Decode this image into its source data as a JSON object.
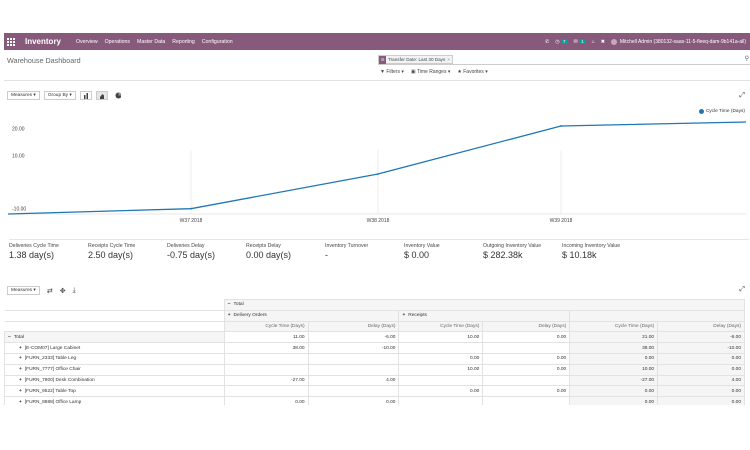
{
  "navbar": {
    "brand": "Inventory",
    "menu": [
      "Overview",
      "Operations",
      "Master Data",
      "Reporting",
      "Configuration"
    ],
    "activity_count": "7",
    "messages_count": "1",
    "user": "Mitchell Admin (380132-saas-11-5-fleeq-dam-9b141a-all)"
  },
  "control_panel": {
    "title": "Warehouse Dashboard",
    "facet": "Transfer Date: Last 30 Days",
    "filters_label": "Filters",
    "time_ranges_label": "Time Ranges",
    "favorites_label": "Favorites"
  },
  "graph_controls": {
    "measures_label": "Measures",
    "group_by_label": "Group By"
  },
  "colors": {
    "brand": "#875a7b",
    "series": "#1f77b4"
  },
  "chart_data": {
    "type": "line",
    "categories": [
      "W37 2018",
      "W38 2018",
      "W39 2018"
    ],
    "series": [
      {
        "name": "Cycle Time (Days)",
        "values": [
          -10,
          3,
          21
        ]
      }
    ],
    "ytick_labels": [
      "20.00",
      "10.00",
      "-10.00"
    ],
    "grid": true,
    "legend": "top-right"
  },
  "kpis": [
    {
      "label": "Deliveries Cycle Time",
      "value": "1.38 day(s)"
    },
    {
      "label": "Receipts Cycle Time",
      "value": "2.50 day(s)"
    },
    {
      "label": "Deliveries Delay",
      "value": "-0.75 day(s)"
    },
    {
      "label": "Receipts Delay",
      "value": "0.00 day(s)"
    },
    {
      "label": "Inventory Turnover",
      "value": "-"
    },
    {
      "label": "Inventory Value",
      "value": "$ 0.00"
    },
    {
      "label": "Outgoing Inventory Value",
      "value": "$ 282.38k"
    },
    {
      "label": "Incoming Inventory Value",
      "value": "$ 10.18k"
    }
  ],
  "pivot": {
    "measures_label": "Measures",
    "col_total": "Total",
    "groups": [
      "Delivery Orders",
      "Receipts"
    ],
    "measure_names": [
      "Cycle Time (Days)",
      "Delay (Days)"
    ],
    "total_row": {
      "label": "Total",
      "values": [
        "11.00",
        "-6.00",
        "10.00",
        "0.00",
        "21.00",
        "-6.00"
      ]
    },
    "rows": [
      {
        "label": "[E-COM07] Large Cabinet",
        "values": [
          "38.00",
          "-10.00",
          "",
          "",
          "38.00",
          "-10.00"
        ]
      },
      {
        "label": "[FURN_2333] Table Leg",
        "values": [
          "",
          "",
          "0.00",
          "0.00",
          "0.00",
          "0.00"
        ]
      },
      {
        "label": "[FURN_7777] Office Chair",
        "values": [
          "",
          "",
          "10.00",
          "0.00",
          "10.00",
          "0.00"
        ]
      },
      {
        "label": "[FURN_7800] Desk Combination",
        "values": [
          "-27.00",
          "4.00",
          "",
          "",
          "-27.00",
          "4.00"
        ]
      },
      {
        "label": "[FURN_9522] Table Top",
        "values": [
          "",
          "",
          "0.00",
          "0.00",
          "0.00",
          "0.00"
        ]
      },
      {
        "label": "[FURN_8888] Office Lamp",
        "values": [
          "0.00",
          "0.00",
          "",
          "",
          "0.00",
          "0.00"
        ]
      }
    ]
  }
}
